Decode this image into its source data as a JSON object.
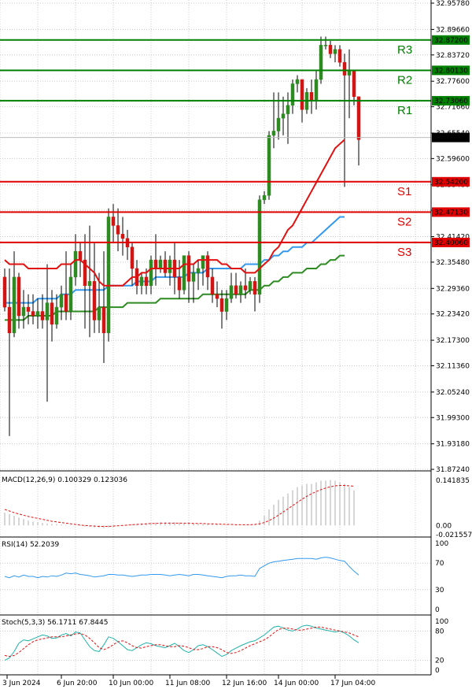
{
  "chart_data": {
    "type": "candlestick",
    "price_ticks": [
      "32.95780",
      "32.89660",
      "32.83720",
      "32.77600",
      "32.71660",
      "32.65540",
      "32.59600",
      "32.53480",
      "32.47540",
      "32.41420",
      "32.35480",
      "32.29360",
      "32.23420",
      "32.17300",
      "32.11360",
      "32.05240",
      "31.99300",
      "31.93180",
      "31.87240"
    ],
    "ylim": [
      31.8725,
      32.9578
    ],
    "current_price": "32.64506",
    "levels": [
      {
        "name": "R3",
        "value": "32.87200",
        "color": "#008000"
      },
      {
        "name": "R2",
        "value": "32.80130",
        "color": "#008000"
      },
      {
        "name": "R1",
        "value": "32.73060",
        "color": "#008000"
      },
      {
        "name": "S1",
        "value": "32.54200",
        "color": "#e00000"
      },
      {
        "name": "S2",
        "value": "32.47130",
        "color": "#e00000"
      },
      {
        "name": "S3",
        "value": "32.40060",
        "color": "#e00000"
      }
    ],
    "x_labels": [
      "3 Jun 2024",
      "6 Jun 20:00",
      "10 Jun 00:00",
      "11 Jun 08:00",
      "12 Jun 16:00",
      "14 Jun 00:00",
      "17 Jun 04:00"
    ],
    "x_label_bars": [
      0.5,
      12,
      23,
      35,
      47,
      58,
      70
    ],
    "candles": [
      [
        32.32,
        32.34,
        32.24,
        32.25
      ],
      [
        32.25,
        32.34,
        31.95,
        32.19
      ],
      [
        32.19,
        32.38,
        32.18,
        32.32
      ],
      [
        32.32,
        32.33,
        32.2,
        32.23
      ],
      [
        32.23,
        32.29,
        32.2,
        32.25
      ],
      [
        32.25,
        32.28,
        32.21,
        32.24
      ],
      [
        32.24,
        32.28,
        32.21,
        32.23
      ],
      [
        32.23,
        32.27,
        32.2,
        32.24
      ],
      [
        32.24,
        32.28,
        32.2,
        32.22
      ],
      [
        32.22,
        32.35,
        32.03,
        32.26
      ],
      [
        32.26,
        32.29,
        32.17,
        32.21
      ],
      [
        32.21,
        32.28,
        32.2,
        32.25
      ],
      [
        32.25,
        32.3,
        32.22,
        32.28
      ],
      [
        32.28,
        32.38,
        32.22,
        32.24
      ],
      [
        32.24,
        32.35,
        32.22,
        32.32
      ],
      [
        32.32,
        32.42,
        32.3,
        32.38
      ],
      [
        32.38,
        32.4,
        32.32,
        32.36
      ],
      [
        32.36,
        32.42,
        32.2,
        32.3
      ],
      [
        32.3,
        32.44,
        32.18,
        32.31
      ],
      [
        32.31,
        32.4,
        32.19,
        32.22
      ],
      [
        32.22,
        32.33,
        32.19,
        32.25
      ],
      [
        32.25,
        32.38,
        32.12,
        32.19
      ],
      [
        32.19,
        32.48,
        32.17,
        32.46
      ],
      [
        32.46,
        32.49,
        32.4,
        32.44
      ],
      [
        32.44,
        32.48,
        32.38,
        32.42
      ],
      [
        32.42,
        32.46,
        32.37,
        32.41
      ],
      [
        32.41,
        32.43,
        32.36,
        32.39
      ],
      [
        32.39,
        32.4,
        32.3,
        32.34
      ],
      [
        32.34,
        32.36,
        32.28,
        32.3
      ],
      [
        32.3,
        32.33,
        32.28,
        32.32
      ],
      [
        32.32,
        32.34,
        32.28,
        32.3
      ],
      [
        32.3,
        32.37,
        32.28,
        32.36
      ],
      [
        32.36,
        32.42,
        32.3,
        32.34
      ],
      [
        32.34,
        32.37,
        32.33,
        32.36
      ],
      [
        32.36,
        32.38,
        32.32,
        32.33
      ],
      [
        32.33,
        32.37,
        32.3,
        32.36
      ],
      [
        32.36,
        32.4,
        32.28,
        32.32
      ],
      [
        32.32,
        32.36,
        32.27,
        32.29
      ],
      [
        32.29,
        32.37,
        32.28,
        32.37
      ],
      [
        32.37,
        32.38,
        32.26,
        32.31
      ],
      [
        32.31,
        32.35,
        32.26,
        32.33
      ],
      [
        32.33,
        32.36,
        32.29,
        32.34
      ],
      [
        32.34,
        32.37,
        32.3,
        32.37
      ],
      [
        32.37,
        32.38,
        32.29,
        32.32
      ],
      [
        32.32,
        32.34,
        32.26,
        32.28
      ],
      [
        32.28,
        32.31,
        32.25,
        32.27
      ],
      [
        32.27,
        32.29,
        32.2,
        32.24
      ],
      [
        32.24,
        32.29,
        32.22,
        32.27
      ],
      [
        32.27,
        32.33,
        32.26,
        32.3
      ],
      [
        32.3,
        32.33,
        32.27,
        32.28
      ],
      [
        32.28,
        32.31,
        32.26,
        32.3
      ],
      [
        32.3,
        32.34,
        32.27,
        32.29
      ],
      [
        32.29,
        32.32,
        32.28,
        32.31
      ],
      [
        32.31,
        32.32,
        32.24,
        32.28
      ],
      [
        32.28,
        32.51,
        32.26,
        32.5
      ],
      [
        32.5,
        32.52,
        32.49,
        32.51
      ],
      [
        32.51,
        32.66,
        32.5,
        32.65
      ],
      [
        32.65,
        32.75,
        32.62,
        32.66
      ],
      [
        32.66,
        32.75,
        32.64,
        32.69
      ],
      [
        32.69,
        32.74,
        32.65,
        32.7
      ],
      [
        32.7,
        32.75,
        32.63,
        32.72
      ],
      [
        32.72,
        32.78,
        32.7,
        32.77
      ],
      [
        32.77,
        32.79,
        32.75,
        32.78
      ],
      [
        32.78,
        32.78,
        32.68,
        32.71
      ],
      [
        32.71,
        32.76,
        32.7,
        32.75
      ],
      [
        32.75,
        32.78,
        32.7,
        32.73
      ],
      [
        32.73,
        32.8,
        32.71,
        32.78
      ],
      [
        32.78,
        32.88,
        32.77,
        32.86
      ],
      [
        32.86,
        32.88,
        32.85,
        32.86
      ],
      [
        32.86,
        32.87,
        32.83,
        32.84
      ],
      [
        32.84,
        32.86,
        32.82,
        32.85
      ],
      [
        32.85,
        32.86,
        32.81,
        32.82
      ],
      [
        32.82,
        32.84,
        32.53,
        32.79
      ],
      [
        32.79,
        32.85,
        32.69,
        32.8
      ],
      [
        32.8,
        32.8,
        32.72,
        32.74
      ],
      [
        32.74,
        32.74,
        32.58,
        32.64
      ]
    ],
    "ma_red": [
      32.36,
      32.35,
      32.35,
      32.35,
      32.35,
      32.34,
      32.34,
      32.34,
      32.34,
      32.34,
      32.34,
      32.34,
      32.35,
      32.35,
      32.35,
      32.36,
      32.36,
      32.35,
      32.34,
      32.33,
      32.31,
      32.3,
      32.3,
      32.3,
      32.3,
      32.3,
      32.31,
      32.32,
      32.32,
      32.33,
      32.33,
      32.34,
      32.34,
      32.34,
      32.34,
      32.34,
      32.34,
      32.34,
      32.35,
      32.35,
      32.35,
      32.36,
      32.36,
      32.36,
      32.36,
      32.36,
      32.35,
      32.35,
      32.34,
      32.34,
      32.34,
      32.33,
      32.33,
      32.33,
      32.34,
      32.35,
      32.36,
      32.38,
      32.39,
      32.41,
      32.43,
      32.44,
      32.46,
      32.48,
      32.5,
      32.52,
      32.54,
      32.56,
      32.58,
      32.6,
      32.62,
      32.63,
      32.64
    ],
    "ma_blue": [
      32.26,
      32.26,
      32.26,
      32.26,
      32.26,
      32.26,
      32.26,
      32.27,
      32.27,
      32.27,
      32.27,
      32.27,
      32.28,
      32.28,
      32.28,
      32.29,
      32.29,
      32.29,
      32.29,
      32.29,
      32.29,
      32.29,
      32.3,
      32.3,
      32.3,
      32.3,
      32.3,
      32.3,
      32.31,
      32.31,
      32.31,
      32.31,
      32.32,
      32.32,
      32.32,
      32.32,
      32.32,
      32.32,
      32.32,
      32.33,
      32.33,
      32.33,
      32.33,
      32.34,
      32.34,
      32.34,
      32.34,
      32.34,
      32.34,
      32.34,
      32.34,
      32.35,
      32.35,
      32.35,
      32.35,
      32.36,
      32.36,
      32.37,
      32.37,
      32.38,
      32.38,
      32.39,
      32.39,
      32.39,
      32.4,
      32.4,
      32.41,
      32.42,
      32.43,
      32.44,
      32.45,
      32.46,
      32.46
    ],
    "ma_green": [
      32.22,
      32.22,
      32.22,
      32.22,
      32.22,
      32.23,
      32.23,
      32.23,
      32.23,
      32.23,
      32.23,
      32.24,
      32.24,
      32.24,
      32.24,
      32.24,
      32.24,
      32.24,
      32.24,
      32.24,
      32.25,
      32.25,
      32.25,
      32.25,
      32.25,
      32.25,
      32.26,
      32.26,
      32.26,
      32.26,
      32.26,
      32.26,
      32.26,
      32.27,
      32.27,
      32.27,
      32.27,
      32.27,
      32.27,
      32.27,
      32.27,
      32.27,
      32.28,
      32.28,
      32.28,
      32.28,
      32.28,
      32.28,
      32.28,
      32.28,
      32.28,
      32.28,
      32.29,
      32.29,
      32.29,
      32.3,
      32.3,
      32.31,
      32.31,
      32.32,
      32.32,
      32.33,
      32.33,
      32.33,
      32.34,
      32.34,
      32.34,
      32.35,
      32.35,
      32.36,
      32.36,
      32.37,
      32.37
    ],
    "macd": {
      "title": "MACD(12,26,9) 0.100329 0.123036",
      "ticks": [
        "0.141835",
        "0.00",
        "-0.021557"
      ],
      "ylim": [
        -0.021557,
        0.151
      ],
      "hist": [
        0.04,
        0.035,
        0.03,
        0.025,
        0.02,
        0.015,
        0.012,
        0.01,
        0.008,
        0.006,
        0.005,
        0.004,
        0.003,
        0.002,
        0.001,
        0.0,
        -0.002,
        -0.004,
        -0.005,
        -0.006,
        -0.007,
        -0.008,
        -0.006,
        -0.004,
        -0.002,
        0.0,
        0.002,
        0.004,
        0.005,
        0.006,
        0.007,
        0.008,
        0.009,
        0.01,
        0.01,
        0.01,
        0.01,
        0.009,
        0.008,
        0.008,
        0.007,
        0.006,
        0.005,
        0.004,
        0.004,
        0.003,
        0.002,
        0.002,
        0.001,
        0.001,
        0.0,
        0.001,
        0.002,
        0.004,
        0.015,
        0.03,
        0.05,
        0.065,
        0.08,
        0.09,
        0.1,
        0.11,
        0.12,
        0.125,
        0.13,
        0.13,
        0.135,
        0.14,
        0.14,
        0.142,
        0.14,
        0.135,
        0.13,
        0.12,
        0.11
      ],
      "signal": [
        0.05,
        0.045,
        0.04,
        0.036,
        0.032,
        0.028,
        0.025,
        0.022,
        0.019,
        0.016,
        0.013,
        0.011,
        0.009,
        0.007,
        0.005,
        0.003,
        0.001,
        0.0,
        -0.001,
        -0.002,
        -0.003,
        -0.003,
        -0.003,
        -0.002,
        -0.001,
        0.0,
        0.001,
        0.002,
        0.003,
        0.004,
        0.005,
        0.006,
        0.006,
        0.007,
        0.007,
        0.007,
        0.007,
        0.007,
        0.007,
        0.007,
        0.006,
        0.006,
        0.006,
        0.005,
        0.005,
        0.004,
        0.004,
        0.003,
        0.003,
        0.002,
        0.002,
        0.002,
        0.002,
        0.003,
        0.005,
        0.009,
        0.015,
        0.023,
        0.032,
        0.042,
        0.052,
        0.062,
        0.072,
        0.082,
        0.091,
        0.099,
        0.106,
        0.112,
        0.117,
        0.121,
        0.124,
        0.125,
        0.125,
        0.124,
        0.123
      ]
    },
    "rsi": {
      "title": "RSI(14) 52.2039",
      "ticks": [
        "100",
        "70",
        "30",
        "0"
      ],
      "ylim": [
        0,
        100
      ],
      "values": [
        50,
        48,
        51,
        49,
        52,
        50,
        50,
        48,
        50,
        49,
        51,
        50,
        52,
        55,
        54,
        55,
        53,
        52,
        51,
        49,
        50,
        51,
        53,
        53,
        52,
        52,
        51,
        50,
        51,
        52,
        52,
        53,
        53,
        53,
        52,
        51,
        52,
        53,
        52,
        51,
        53,
        53,
        52,
        51,
        50,
        49,
        48,
        50,
        51,
        51,
        52,
        51,
        51,
        50,
        62,
        66,
        70,
        72,
        73,
        74,
        75,
        76,
        77,
        77,
        77,
        77,
        76,
        78,
        79,
        78,
        76,
        74,
        73,
        65,
        58,
        52
      ]
    },
    "stoch": {
      "title": "Stoch(5,3,3) 56.1711 67.8445",
      "ticks": [
        "100",
        "80",
        "20",
        "0"
      ],
      "ylim": [
        0,
        100
      ],
      "k": [
        20,
        25,
        38,
        55,
        62,
        60,
        64,
        68,
        72,
        70,
        65,
        66,
        72,
        75,
        70,
        78,
        76,
        62,
        48,
        40,
        38,
        52,
        68,
        65,
        58,
        50,
        42,
        40,
        46,
        52,
        56,
        54,
        50,
        48,
        46,
        50,
        55,
        48,
        40,
        36,
        42,
        50,
        52,
        48,
        42,
        35,
        28,
        32,
        40,
        45,
        50,
        54,
        58,
        60,
        66,
        72,
        80,
        88,
        90,
        86,
        82,
        80,
        84,
        90,
        92,
        90,
        86,
        84,
        82,
        80,
        78,
        80,
        76,
        70,
        62,
        56
      ],
      "d": [
        30,
        28,
        30,
        36,
        44,
        52,
        58,
        62,
        64,
        66,
        68,
        68,
        68,
        70,
        72,
        74,
        75,
        72,
        65,
        56,
        46,
        42,
        46,
        52,
        58,
        60,
        56,
        50,
        46,
        45,
        48,
        50,
        52,
        52,
        50,
        48,
        48,
        50,
        49,
        46,
        42,
        42,
        44,
        48,
        48,
        46,
        42,
        36,
        34,
        36,
        40,
        45,
        50,
        54,
        58,
        62,
        68,
        76,
        83,
        86,
        86,
        84,
        82,
        82,
        84,
        86,
        88,
        88,
        86,
        84,
        82,
        80,
        78,
        76,
        72,
        68
      ]
    }
  }
}
